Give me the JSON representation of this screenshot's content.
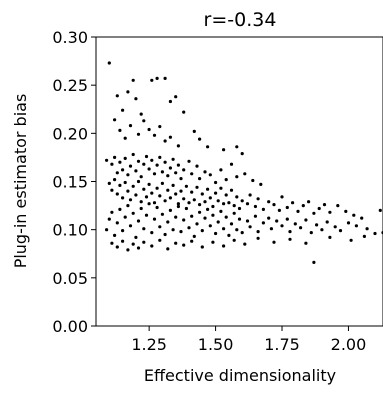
{
  "chart_data": {
    "type": "scatter",
    "title": "r=-0.34",
    "xlabel": "Effective dimensionality",
    "ylabel": "Plug-in estimator bias",
    "xlim": [
      1.05,
      2.13
    ],
    "ylim": [
      0.0,
      0.3
    ],
    "x_ticks": [
      1.25,
      1.5,
      1.75,
      2.0
    ],
    "x_tick_labels": [
      "1.25",
      "1.50",
      "1.75",
      "2.00"
    ],
    "y_ticks": [
      0.0,
      0.05,
      0.1,
      0.15,
      0.2,
      0.25,
      0.3
    ],
    "y_tick_labels": [
      "0.00",
      "0.05",
      "0.10",
      "0.15",
      "0.20",
      "0.25",
      "0.30"
    ],
    "grid": false,
    "marker_color": "#000000",
    "series": [
      {
        "points": [
          [
            1.1,
            0.273
          ],
          [
            1.13,
            0.239
          ],
          [
            1.15,
            0.224
          ],
          [
            1.17,
            0.243
          ],
          [
            1.19,
            0.255
          ],
          [
            1.2,
            0.236
          ],
          [
            1.22,
            0.22
          ],
          [
            1.26,
            0.255
          ],
          [
            1.28,
            0.257
          ],
          [
            1.31,
            0.257
          ],
          [
            1.33,
            0.233
          ],
          [
            1.35,
            0.238
          ],
          [
            1.38,
            0.222
          ],
          [
            1.12,
            0.214
          ],
          [
            1.14,
            0.203
          ],
          [
            1.16,
            0.195
          ],
          [
            1.18,
            0.208
          ],
          [
            1.21,
            0.199
          ],
          [
            1.23,
            0.213
          ],
          [
            1.25,
            0.204
          ],
          [
            1.27,
            0.198
          ],
          [
            1.29,
            0.207
          ],
          [
            1.31,
            0.192
          ],
          [
            1.33,
            0.196
          ],
          [
            1.36,
            0.187
          ],
          [
            1.42,
            0.202
          ],
          [
            1.44,
            0.194
          ],
          [
            1.47,
            0.186
          ],
          [
            1.53,
            0.183
          ],
          [
            1.58,
            0.186
          ],
          [
            1.6,
            0.179
          ],
          [
            1.09,
            0.172
          ],
          [
            1.11,
            0.168
          ],
          [
            1.12,
            0.175
          ],
          [
            1.13,
            0.159
          ],
          [
            1.14,
            0.17
          ],
          [
            1.15,
            0.162
          ],
          [
            1.16,
            0.174
          ],
          [
            1.17,
            0.157
          ],
          [
            1.18,
            0.166
          ],
          [
            1.19,
            0.178
          ],
          [
            1.2,
            0.161
          ],
          [
            1.21,
            0.171
          ],
          [
            1.22,
            0.155
          ],
          [
            1.23,
            0.168
          ],
          [
            1.24,
            0.176
          ],
          [
            1.25,
            0.163
          ],
          [
            1.26,
            0.172
          ],
          [
            1.27,
            0.158
          ],
          [
            1.28,
            0.167
          ],
          [
            1.29,
            0.175
          ],
          [
            1.3,
            0.16
          ],
          [
            1.31,
            0.17
          ],
          [
            1.32,
            0.156
          ],
          [
            1.33,
            0.164
          ],
          [
            1.34,
            0.173
          ],
          [
            1.35,
            0.159
          ],
          [
            1.36,
            0.167
          ],
          [
            1.37,
            0.153
          ],
          [
            1.38,
            0.162
          ],
          [
            1.4,
            0.171
          ],
          [
            1.41,
            0.158
          ],
          [
            1.43,
            0.166
          ],
          [
            1.44,
            0.153
          ],
          [
            1.46,
            0.16
          ],
          [
            1.48,
            0.157
          ],
          [
            1.5,
            0.149
          ],
          [
            1.52,
            0.162
          ],
          [
            1.54,
            0.152
          ],
          [
            1.56,
            0.168
          ],
          [
            1.58,
            0.155
          ],
          [
            1.61,
            0.158
          ],
          [
            1.64,
            0.151
          ],
          [
            1.67,
            0.147
          ],
          [
            1.1,
            0.148
          ],
          [
            1.11,
            0.141
          ],
          [
            1.12,
            0.152
          ],
          [
            1.13,
            0.137
          ],
          [
            1.14,
            0.146
          ],
          [
            1.15,
            0.133
          ],
          [
            1.16,
            0.149
          ],
          [
            1.17,
            0.14
          ],
          [
            1.18,
            0.131
          ],
          [
            1.19,
            0.145
          ],
          [
            1.2,
            0.136
          ],
          [
            1.21,
            0.15
          ],
          [
            1.22,
            0.129
          ],
          [
            1.23,
            0.142
          ],
          [
            1.24,
            0.134
          ],
          [
            1.25,
            0.147
          ],
          [
            1.26,
            0.138
          ],
          [
            1.27,
            0.128
          ],
          [
            1.28,
            0.143
          ],
          [
            1.29,
            0.135
          ],
          [
            1.3,
            0.148
          ],
          [
            1.31,
            0.13
          ],
          [
            1.32,
            0.141
          ],
          [
            1.33,
            0.133
          ],
          [
            1.34,
            0.146
          ],
          [
            1.35,
            0.137
          ],
          [
            1.36,
            0.127
          ],
          [
            1.37,
            0.14
          ],
          [
            1.38,
            0.132
          ],
          [
            1.39,
            0.145
          ],
          [
            1.4,
            0.128
          ],
          [
            1.41,
            0.139
          ],
          [
            1.42,
            0.131
          ],
          [
            1.43,
            0.144
          ],
          [
            1.44,
            0.126
          ],
          [
            1.45,
            0.137
          ],
          [
            1.46,
            0.129
          ],
          [
            1.47,
            0.142
          ],
          [
            1.48,
            0.133
          ],
          [
            1.49,
            0.124
          ],
          [
            1.5,
            0.138
          ],
          [
            1.51,
            0.13
          ],
          [
            1.52,
            0.143
          ],
          [
            1.53,
            0.127
          ],
          [
            1.54,
            0.136
          ],
          [
            1.55,
            0.128
          ],
          [
            1.56,
            0.141
          ],
          [
            1.57,
            0.125
          ],
          [
            1.58,
            0.134
          ],
          [
            1.59,
            0.122
          ],
          [
            1.6,
            0.13
          ],
          [
            1.62,
            0.127
          ],
          [
            1.63,
            0.136
          ],
          [
            1.65,
            0.124
          ],
          [
            1.66,
            0.132
          ],
          [
            1.68,
            0.121
          ],
          [
            1.7,
            0.129
          ],
          [
            1.72,
            0.126
          ],
          [
            1.74,
            0.12
          ],
          [
            1.75,
            0.134
          ],
          [
            1.77,
            0.123
          ],
          [
            1.79,
            0.128
          ],
          [
            1.81,
            0.119
          ],
          [
            1.83,
            0.125
          ],
          [
            1.85,
            0.129
          ],
          [
            1.87,
            0.117
          ],
          [
            1.89,
            0.122
          ],
          [
            1.91,
            0.126
          ],
          [
            1.93,
            0.118
          ],
          [
            1.96,
            0.125
          ],
          [
            1.99,
            0.119
          ],
          [
            2.02,
            0.115
          ],
          [
            2.05,
            0.112
          ],
          [
            2.12,
            0.12
          ],
          [
            1.09,
            0.1
          ],
          [
            1.1,
            0.111
          ],
          [
            1.11,
            0.118
          ],
          [
            1.12,
            0.094
          ],
          [
            1.13,
            0.107
          ],
          [
            1.14,
            0.121
          ],
          [
            1.15,
            0.099
          ],
          [
            1.16,
            0.113
          ],
          [
            1.17,
            0.125
          ],
          [
            1.18,
            0.104
          ],
          [
            1.19,
            0.117
          ],
          [
            1.2,
            0.092
          ],
          [
            1.21,
            0.109
          ],
          [
            1.22,
            0.122
          ],
          [
            1.23,
            0.101
          ],
          [
            1.24,
            0.115
          ],
          [
            1.25,
            0.127
          ],
          [
            1.26,
            0.097
          ],
          [
            1.27,
            0.111
          ],
          [
            1.28,
            0.123
          ],
          [
            1.29,
            0.103
          ],
          [
            1.3,
            0.116
          ],
          [
            1.31,
            0.095
          ],
          [
            1.32,
            0.108
          ],
          [
            1.33,
            0.12
          ],
          [
            1.34,
            0.1
          ],
          [
            1.35,
            0.113
          ],
          [
            1.36,
            0.124
          ],
          [
            1.37,
            0.098
          ],
          [
            1.38,
            0.11
          ],
          [
            1.39,
            0.122
          ],
          [
            1.4,
            0.102
          ],
          [
            1.41,
            0.114
          ],
          [
            1.42,
            0.093
          ],
          [
            1.43,
            0.106
          ],
          [
            1.44,
            0.118
          ],
          [
            1.45,
            0.099
          ],
          [
            1.46,
            0.112
          ],
          [
            1.47,
            0.121
          ],
          [
            1.48,
            0.104
          ],
          [
            1.49,
            0.115
          ],
          [
            1.5,
            0.096
          ],
          [
            1.51,
            0.108
          ],
          [
            1.52,
            0.119
          ],
          [
            1.53,
            0.101
          ],
          [
            1.54,
            0.113
          ],
          [
            1.55,
            0.094
          ],
          [
            1.56,
            0.106
          ],
          [
            1.57,
            0.117
          ],
          [
            1.58,
            0.1
          ],
          [
            1.59,
            0.111
          ],
          [
            1.6,
            0.097
          ],
          [
            1.62,
            0.109
          ],
          [
            1.63,
            0.103
          ],
          [
            1.65,
            0.114
          ],
          [
            1.66,
            0.098
          ],
          [
            1.68,
            0.107
          ],
          [
            1.7,
            0.112
          ],
          [
            1.71,
            0.101
          ],
          [
            1.73,
            0.109
          ],
          [
            1.75,
            0.104
          ],
          [
            1.77,
            0.111
          ],
          [
            1.78,
            0.098
          ],
          [
            1.8,
            0.106
          ],
          [
            1.82,
            0.102
          ],
          [
            1.84,
            0.11
          ],
          [
            1.86,
            0.097
          ],
          [
            1.88,
            0.105
          ],
          [
            1.9,
            0.1
          ],
          [
            1.92,
            0.108
          ],
          [
            1.95,
            0.103
          ],
          [
            1.97,
            0.099
          ],
          [
            2.0,
            0.107
          ],
          [
            2.03,
            0.104
          ],
          [
            2.07,
            0.101
          ],
          [
            2.1,
            0.096
          ],
          [
            2.13,
            0.097
          ],
          [
            1.11,
            0.086
          ],
          [
            1.13,
            0.082
          ],
          [
            1.15,
            0.088
          ],
          [
            1.17,
            0.079
          ],
          [
            1.19,
            0.085
          ],
          [
            1.21,
            0.081
          ],
          [
            1.23,
            0.087
          ],
          [
            1.26,
            0.083
          ],
          [
            1.29,
            0.089
          ],
          [
            1.32,
            0.08
          ],
          [
            1.35,
            0.086
          ],
          [
            1.38,
            0.084
          ],
          [
            1.41,
            0.088
          ],
          [
            1.45,
            0.082
          ],
          [
            1.49,
            0.087
          ],
          [
            1.53,
            0.083
          ],
          [
            1.57,
            0.089
          ],
          [
            1.61,
            0.085
          ],
          [
            1.66,
            0.091
          ],
          [
            1.72,
            0.087
          ],
          [
            1.78,
            0.09
          ],
          [
            1.84,
            0.086
          ],
          [
            1.87,
            0.066
          ],
          [
            1.93,
            0.092
          ],
          [
            2.01,
            0.089
          ],
          [
            2.06,
            0.093
          ]
        ]
      }
    ]
  }
}
